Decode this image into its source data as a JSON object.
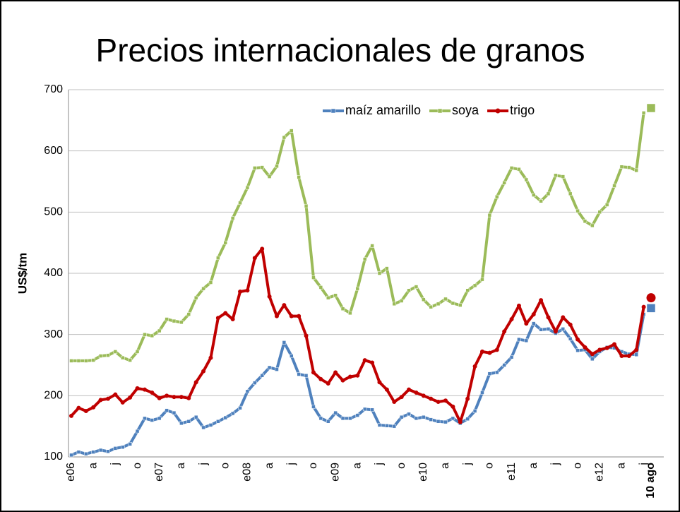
{
  "chart_data": {
    "type": "line",
    "title": "Precios internacionales de granos",
    "y_label": "US$/tm",
    "categories": [
      "e06",
      null,
      null,
      "a",
      null,
      null,
      "j",
      null,
      null,
      "o",
      null,
      null,
      "e07",
      null,
      null,
      "a",
      null,
      null,
      "j",
      null,
      null,
      "o",
      null,
      null,
      "e08",
      null,
      null,
      "a",
      null,
      null,
      "j",
      null,
      null,
      "o",
      null,
      null,
      "e09",
      null,
      null,
      "a",
      null,
      null,
      "j",
      null,
      null,
      "o",
      null,
      null,
      "e10",
      null,
      null,
      "a",
      null,
      null,
      "j",
      null,
      null,
      "o",
      null,
      null,
      "e11",
      null,
      null,
      "a",
      null,
      null,
      "j",
      null,
      null,
      "o",
      null,
      null,
      "e12",
      null,
      null,
      "a",
      null,
      null,
      "j",
      "10 ago"
    ],
    "series": [
      {
        "name": "maíz amarillo",
        "color": "#4f81bd",
        "marker": "square",
        "values": [
          103,
          108,
          105,
          108,
          111,
          109,
          114,
          116,
          121,
          142,
          163,
          160,
          163,
          176,
          172,
          155,
          158,
          165,
          148,
          152,
          158,
          164,
          171,
          180,
          207,
          221,
          233,
          246,
          243,
          287,
          265,
          235,
          233,
          182,
          163,
          158,
          172,
          163,
          163,
          168,
          178,
          177,
          152,
          151,
          150,
          165,
          170,
          163,
          165,
          161,
          158,
          157,
          163,
          155,
          162,
          175,
          205,
          236,
          238,
          250,
          263,
          292,
          290,
          318,
          308,
          309,
          302,
          309,
          293,
          274,
          275,
          260,
          272,
          279,
          278,
          272,
          268,
          267,
          333,
          343
        ]
      },
      {
        "name": "soya",
        "color": "#9bbb59",
        "marker": "square",
        "values": [
          257,
          257,
          257,
          258,
          265,
          266,
          272,
          262,
          258,
          272,
          300,
          298,
          306,
          325,
          322,
          320,
          333,
          360,
          375,
          385,
          425,
          450,
          490,
          515,
          540,
          572,
          573,
          558,
          575,
          622,
          633,
          557,
          510,
          393,
          377,
          360,
          364,
          342,
          335,
          375,
          423,
          445,
          400,
          408,
          350,
          355,
          372,
          378,
          357,
          345,
          350,
          358,
          351,
          348,
          372,
          380,
          390,
          495,
          525,
          548,
          572,
          570,
          553,
          528,
          518,
          530,
          560,
          558,
          530,
          502,
          485,
          478,
          500,
          512,
          543,
          574,
          573,
          568,
          662,
          670
        ]
      },
      {
        "name": "trigo",
        "color": "#c00000",
        "marker": "circle",
        "values": [
          167,
          180,
          175,
          181,
          193,
          195,
          202,
          189,
          197,
          212,
          210,
          205,
          196,
          200,
          198,
          198,
          196,
          222,
          240,
          262,
          327,
          335,
          325,
          370,
          372,
          425,
          440,
          362,
          330,
          348,
          330,
          330,
          298,
          238,
          227,
          220,
          238,
          225,
          231,
          233,
          258,
          254,
          222,
          210,
          190,
          198,
          210,
          205,
          200,
          195,
          190,
          192,
          182,
          157,
          195,
          248,
          272,
          270,
          275,
          305,
          325,
          347,
          318,
          333,
          356,
          328,
          305,
          328,
          316,
          292,
          279,
          268,
          275,
          278,
          284,
          265,
          265,
          275,
          345,
          360
        ]
      }
    ],
    "ylim": [
      100,
      700
    ],
    "yticks": [
      100,
      200,
      300,
      400,
      500,
      600,
      700
    ],
    "grid": true,
    "legend": "top-right"
  }
}
